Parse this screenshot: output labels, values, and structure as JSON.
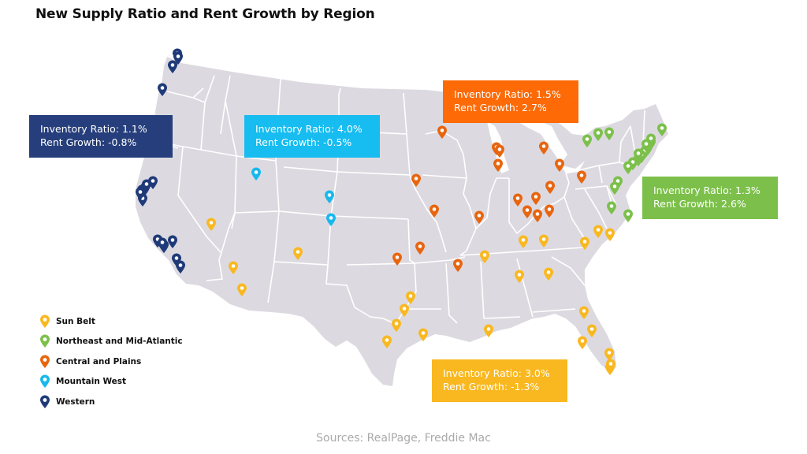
{
  "title": "New Supply Ratio and Rent Growth by Region",
  "sources": "Sources: RealPage, Freddie Mac",
  "colors": {
    "map_fill": "#dcdae0",
    "border": "#ffffff",
    "sun_belt": "#f9b820",
    "northeast": "#7cc04b",
    "central": "#e8650f",
    "mountain_west": "#18b8ec",
    "western": "#1f3a78"
  },
  "legend": [
    {
      "key": "sun_belt",
      "label": "Sun Belt"
    },
    {
      "key": "northeast",
      "label": "Northeast and Mid-Atlantic"
    },
    {
      "key": "central",
      "label": "Central and Plains"
    },
    {
      "key": "mountain_west",
      "label": "Mountain West"
    },
    {
      "key": "western",
      "label": "Western"
    }
  ],
  "callouts": {
    "western": {
      "line1": "Inventory Ratio: 1.1%",
      "line2": "Rent Growth: -0.8%",
      "color": "#263f7c"
    },
    "mountain_west": {
      "line1": "Inventory Ratio: 4.0%",
      "line2": "Rent Growth: -0.5%",
      "color": "#17bcf0"
    },
    "central": {
      "line1": "Inventory Ratio: 1.5%",
      "line2": "Rent Growth: 2.7%",
      "color": "#fd6a06"
    },
    "northeast": {
      "line1": "Inventory Ratio: 1.3%",
      "line2": "Rent Growth: 2.6%",
      "color": "#7cc04b"
    },
    "sun_belt": {
      "line1": "Inventory Ratio: 3.0%",
      "line2": "Rent Growth: -1.3%",
      "color": "#f9b820"
    }
  },
  "markers": {
    "western": 16,
    "mountain_west": 3,
    "central": 19,
    "northeast": 18,
    "sun_belt": 30
  }
}
